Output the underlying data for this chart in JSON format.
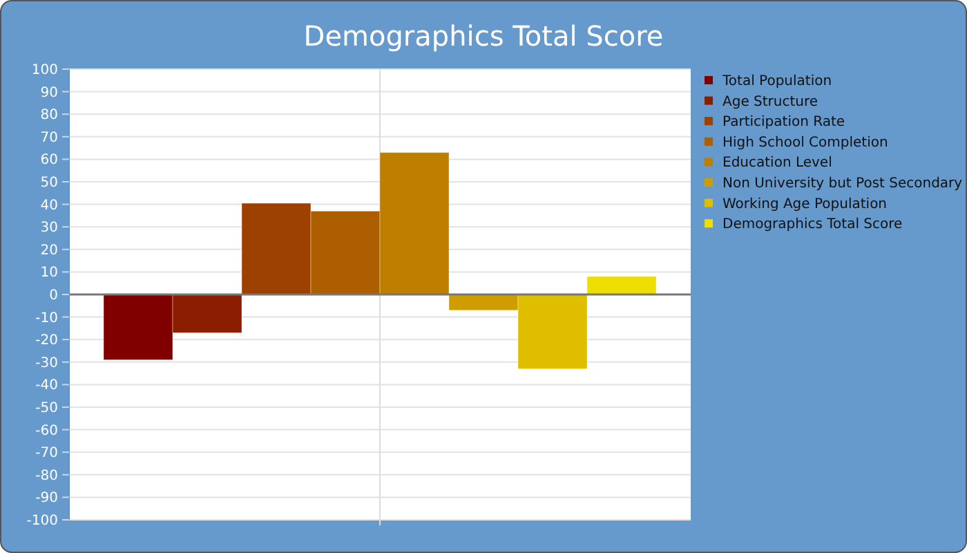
{
  "chart_data": {
    "type": "bar",
    "title": "Demographics Total Score",
    "categories": [
      null
    ],
    "ylim": [
      -100,
      100
    ],
    "yticks": [
      -100,
      -90,
      -80,
      -70,
      -60,
      -50,
      -40,
      -30,
      -20,
      -10,
      0,
      10,
      20,
      30,
      40,
      50,
      60,
      70,
      80,
      90,
      100
    ],
    "grid": true,
    "legend": "right",
    "series": [
      {
        "name": "Total Population",
        "color": "#800000",
        "values": [
          -29
        ]
      },
      {
        "name": "Age Structure",
        "color": "#8b1e00",
        "values": [
          -17
        ]
      },
      {
        "name": "Participation Rate",
        "color": "#9c4100",
        "values": [
          40.5
        ]
      },
      {
        "name": "High School Completion",
        "color": "#ad5f00",
        "values": [
          37
        ]
      },
      {
        "name": "Education Level",
        "color": "#be7f00",
        "values": [
          63
        ]
      },
      {
        "name": "Non University but Post Secondary",
        "color": "#cf9d00",
        "values": [
          -7
        ]
      },
      {
        "name": "Working Age Population",
        "color": "#dfbe00",
        "values": [
          -33
        ]
      },
      {
        "name": "Demographics Total Score",
        "color": "#efdf00",
        "values": [
          8
        ]
      }
    ]
  }
}
